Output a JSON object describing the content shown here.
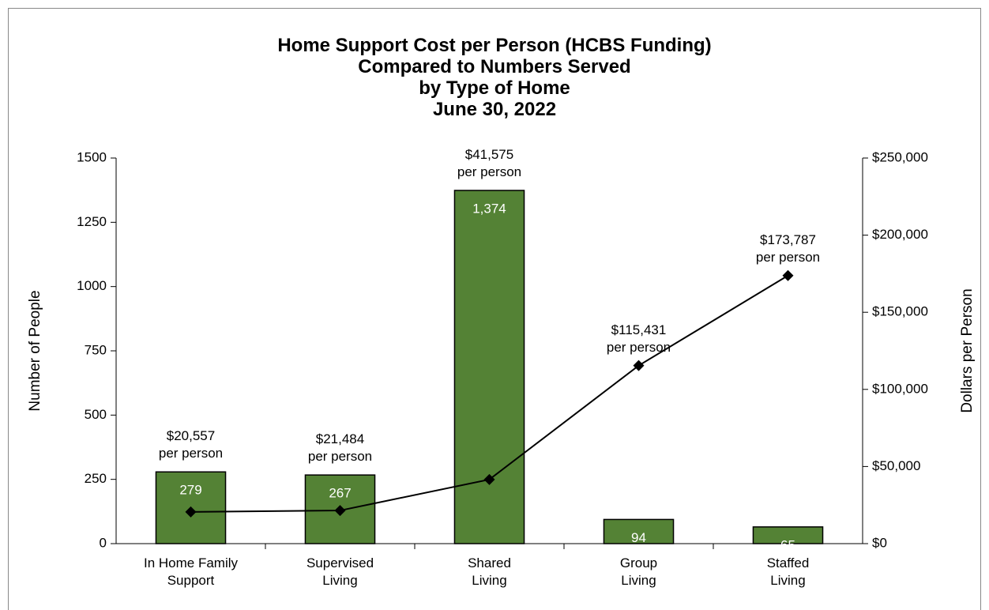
{
  "chart_data": {
    "type": "bar",
    "title": "Home Support Cost per Person (HCBS Funding)\nCompared to Numbers Served\nby Type of Home\nJune 30, 2022",
    "categories": [
      "In Home Family\nSupport",
      "Supervised\nLiving",
      "Shared\nLiving",
      "Group\nLiving",
      "Staffed\nLiving"
    ],
    "ylabel": "Number of People",
    "y2label": "Dollars per Person",
    "ylim": [
      0,
      1500
    ],
    "yticks": [
      0,
      250,
      500,
      750,
      1000,
      1250,
      1500
    ],
    "y2lim": [
      0,
      250000
    ],
    "y2ticks": [
      {
        "value": 0,
        "label": "$0"
      },
      {
        "value": 50000,
        "label": "$50,000"
      },
      {
        "value": 100000,
        "label": "$100,000"
      },
      {
        "value": 150000,
        "label": "$150,000"
      },
      {
        "value": 200000,
        "label": "$200,000"
      },
      {
        "value": 250000,
        "label": "$250,000"
      }
    ],
    "grid": false,
    "series": [
      {
        "type": "bar",
        "color": "#548235",
        "values": [
          279,
          267,
          1374,
          94,
          65
        ],
        "value_labels": [
          "279",
          "267",
          "1,374",
          "94",
          "65"
        ]
      },
      {
        "type": "line",
        "axis": "y2",
        "color": "#000000",
        "values": [
          20557,
          21484,
          41575,
          115431,
          173787
        ],
        "value_labels": [
          "$20,557\nper person",
          "$21,484\nper person",
          "$41,575\nper person",
          "$115,431\nper person",
          "$173,787\nper person"
        ]
      }
    ]
  }
}
